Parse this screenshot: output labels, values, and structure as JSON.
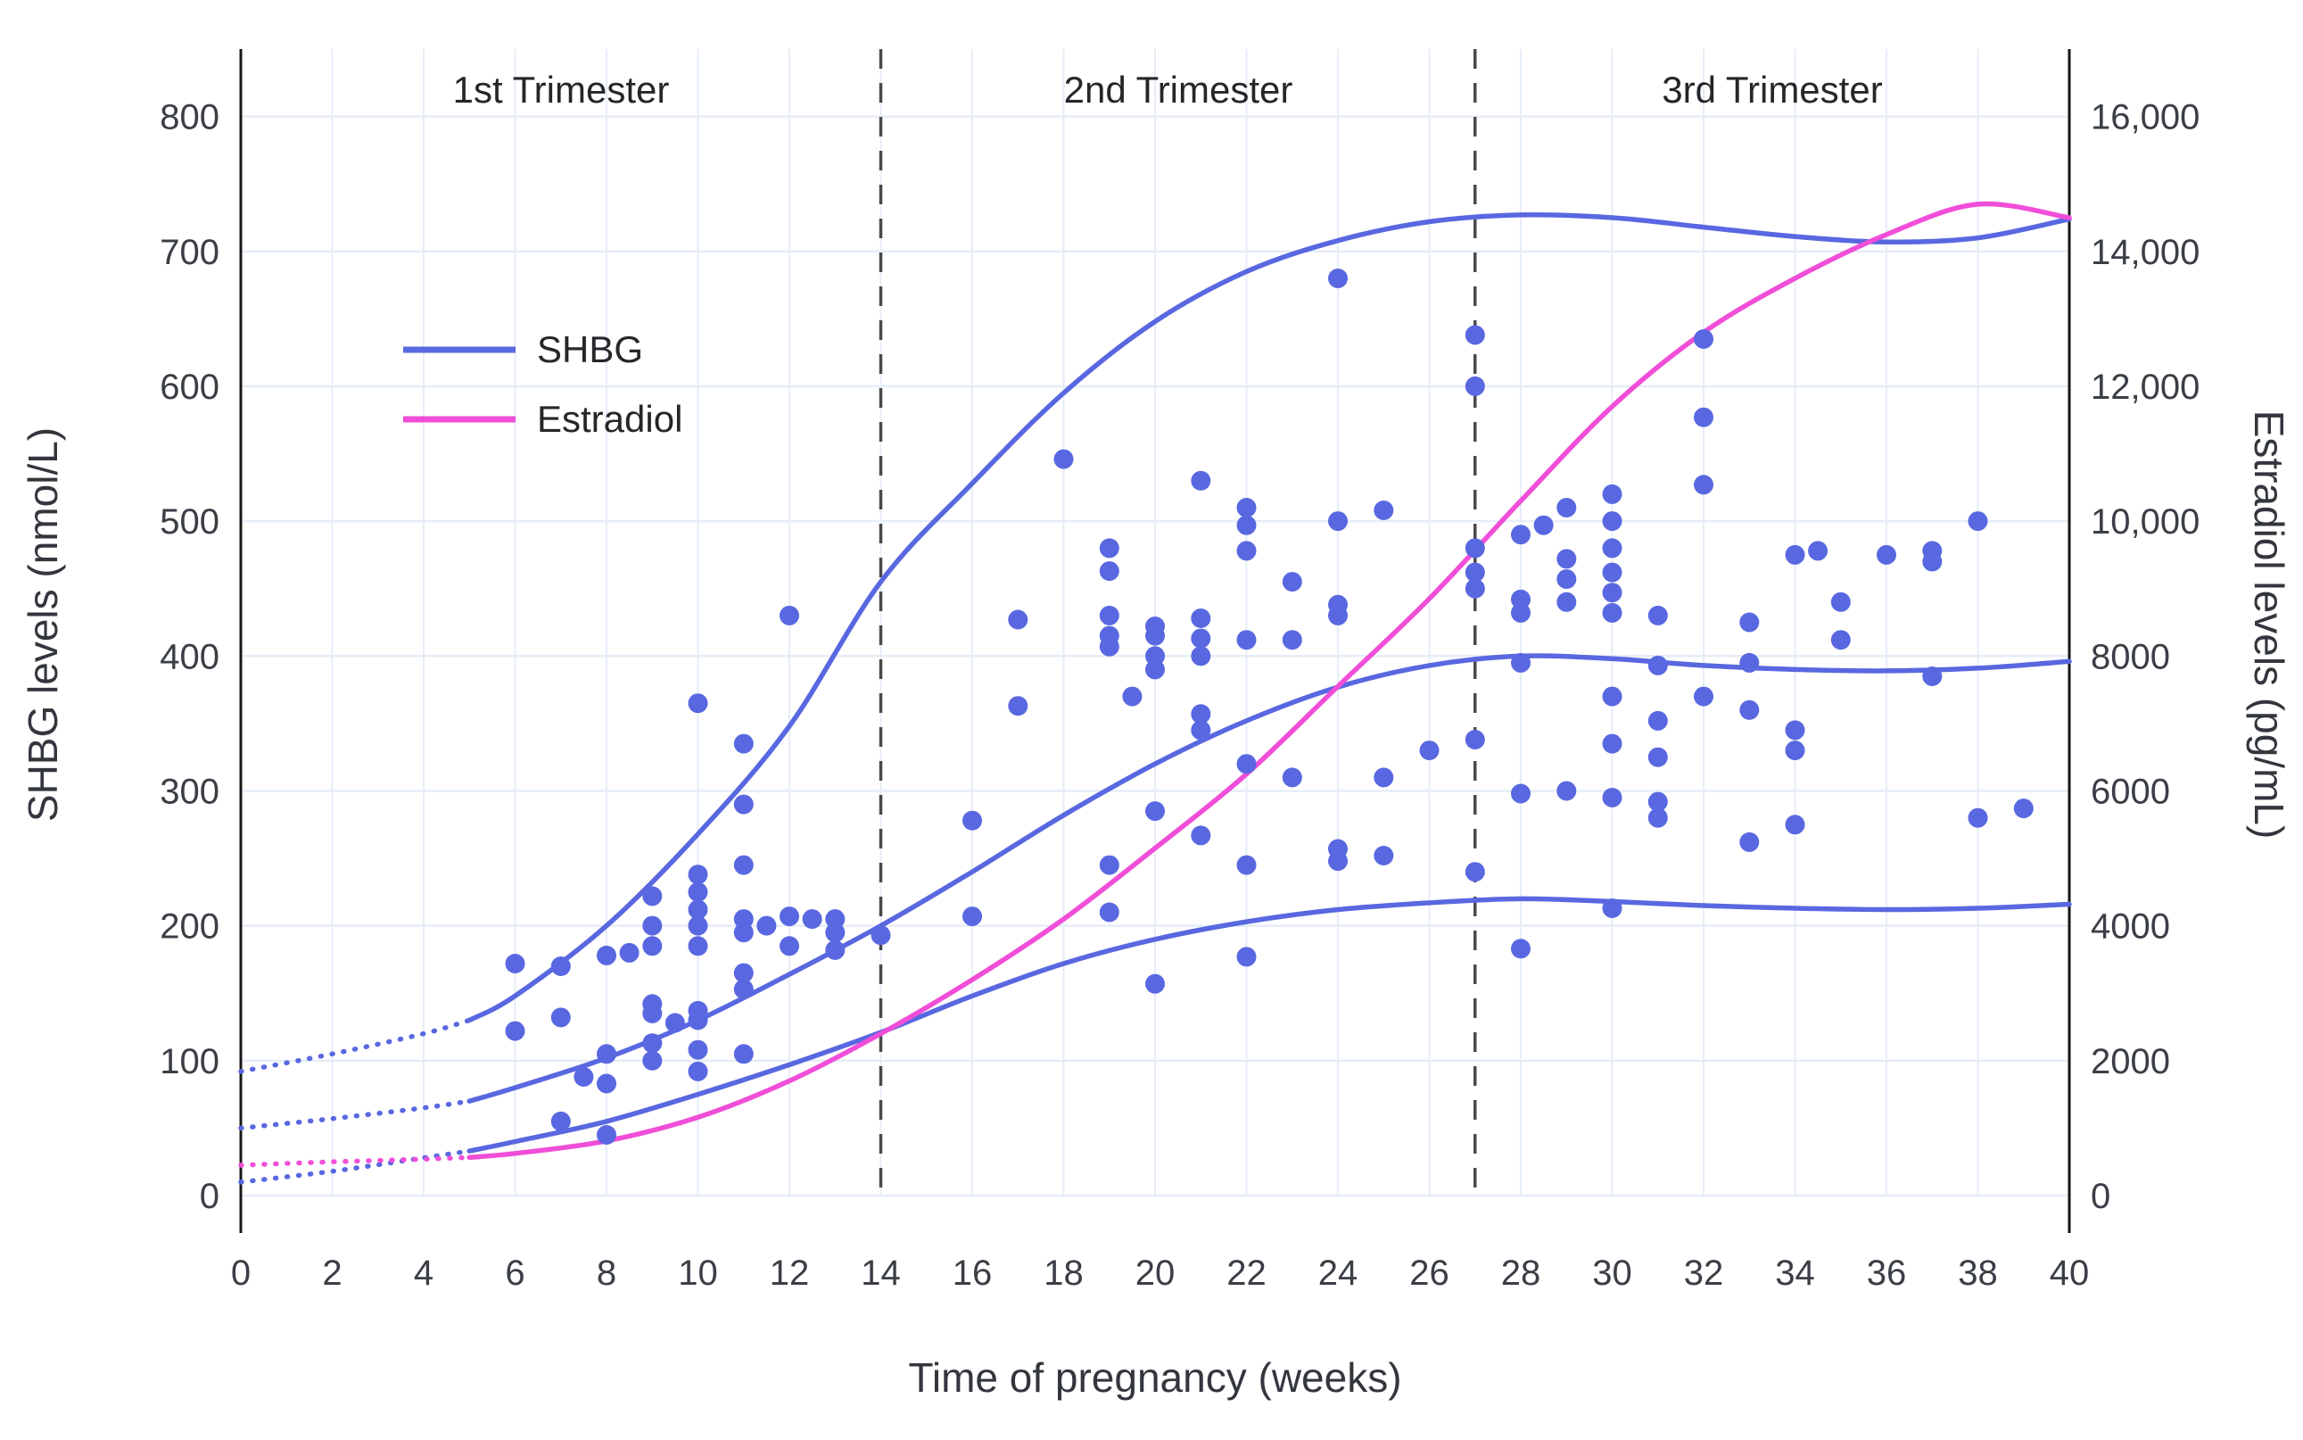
{
  "chart_data": {
    "type": "line",
    "title": "",
    "x_label": "Time of pregnancy (weeks)",
    "y_left_label": "SHBG levels (nmol/L)",
    "y_right_label": "Estradiol levels (pg/mL)",
    "x_range": [
      0,
      40
    ],
    "y_left_range": [
      0,
      850
    ],
    "y_right_range": [
      0,
      17000
    ],
    "grid": true,
    "x_ticks": [
      [
        0,
        "0"
      ],
      [
        2,
        "2"
      ],
      [
        4,
        "4"
      ],
      [
        6,
        "6"
      ],
      [
        8,
        "8"
      ],
      [
        10,
        "10"
      ],
      [
        12,
        "12"
      ],
      [
        14,
        "14"
      ],
      [
        16,
        "16"
      ],
      [
        18,
        "18"
      ],
      [
        20,
        "20"
      ],
      [
        22,
        "22"
      ],
      [
        24,
        "24"
      ],
      [
        26,
        "26"
      ],
      [
        28,
        "28"
      ],
      [
        30,
        "30"
      ],
      [
        32,
        "32"
      ],
      [
        34,
        "34"
      ],
      [
        36,
        "36"
      ],
      [
        38,
        "38"
      ],
      [
        40,
        "40"
      ]
    ],
    "y_left_ticks": [
      [
        0,
        "0"
      ],
      [
        100,
        "100"
      ],
      [
        200,
        "200"
      ],
      [
        300,
        "300"
      ],
      [
        400,
        "400"
      ],
      [
        500,
        "500"
      ],
      [
        600,
        "600"
      ],
      [
        700,
        "700"
      ],
      [
        800,
        "800"
      ]
    ],
    "y_right_ticks": [
      [
        0,
        "0"
      ],
      [
        2000,
        "2000"
      ],
      [
        4000,
        "4000"
      ],
      [
        6000,
        "6000"
      ],
      [
        8000,
        "8000"
      ],
      [
        10000,
        "10,000"
      ],
      [
        12000,
        "12,000"
      ],
      [
        14000,
        "14,000"
      ],
      [
        16000,
        "16,000"
      ]
    ],
    "trimesters": [
      {
        "label": "1st Trimester",
        "start_week": 0,
        "end_week": 14
      },
      {
        "label": "2nd Trimester",
        "start_week": 14,
        "end_week": 27
      },
      {
        "label": "3rd Trimester",
        "start_week": 27,
        "end_week": 40
      }
    ],
    "legend": {
      "position": "upper-left-inside",
      "entries": [
        {
          "label": "SHBG",
          "color": "#5968e0"
        },
        {
          "label": "Estradiol",
          "color": "#f04ed8"
        }
      ]
    },
    "colors": {
      "shbg": "#5968e0",
      "estradiol": "#f04ed8",
      "grid": "#e6edf7",
      "divider": "#4a4a4a",
      "axis": "#161616",
      "tick_text": "#3a3e45"
    },
    "series": [
      {
        "name": "SHBG-upper",
        "axis": "left",
        "color": "#5968e0",
        "dotted_until_week": 5,
        "points": [
          [
            0,
            92
          ],
          [
            2,
            105
          ],
          [
            4,
            120
          ],
          [
            5,
            130
          ],
          [
            6,
            148
          ],
          [
            8,
            200
          ],
          [
            10,
            268
          ],
          [
            12,
            348
          ],
          [
            14,
            455
          ],
          [
            16,
            528
          ],
          [
            18,
            595
          ],
          [
            20,
            648
          ],
          [
            22,
            685
          ],
          [
            24,
            708
          ],
          [
            26,
            722
          ],
          [
            28,
            727
          ],
          [
            30,
            725
          ],
          [
            32,
            718
          ],
          [
            34,
            711
          ],
          [
            36,
            707
          ],
          [
            38,
            710
          ],
          [
            40,
            724
          ]
        ]
      },
      {
        "name": "SHBG-mean",
        "axis": "left",
        "color": "#5968e0",
        "dotted_until_week": 5,
        "points": [
          [
            0,
            50
          ],
          [
            2,
            57
          ],
          [
            4,
            65
          ],
          [
            5,
            70
          ],
          [
            6,
            80
          ],
          [
            8,
            102
          ],
          [
            10,
            130
          ],
          [
            12,
            164
          ],
          [
            14,
            200
          ],
          [
            16,
            240
          ],
          [
            18,
            282
          ],
          [
            20,
            320
          ],
          [
            22,
            352
          ],
          [
            24,
            377
          ],
          [
            26,
            393
          ],
          [
            28,
            400
          ],
          [
            30,
            398
          ],
          [
            32,
            393
          ],
          [
            34,
            390
          ],
          [
            36,
            389
          ],
          [
            38,
            391
          ],
          [
            40,
            396
          ]
        ]
      },
      {
        "name": "SHBG-lower",
        "axis": "left",
        "color": "#5968e0",
        "dotted_until_week": 5,
        "points": [
          [
            0,
            10
          ],
          [
            2,
            18
          ],
          [
            4,
            28
          ],
          [
            5,
            33
          ],
          [
            6,
            40
          ],
          [
            8,
            55
          ],
          [
            10,
            75
          ],
          [
            12,
            97
          ],
          [
            14,
            121
          ],
          [
            16,
            148
          ],
          [
            18,
            172
          ],
          [
            20,
            190
          ],
          [
            22,
            203
          ],
          [
            24,
            212
          ],
          [
            26,
            217
          ],
          [
            28,
            220
          ],
          [
            30,
            218
          ],
          [
            32,
            215
          ],
          [
            34,
            213
          ],
          [
            36,
            212
          ],
          [
            38,
            213
          ],
          [
            40,
            216
          ]
        ]
      },
      {
        "name": "Estradiol",
        "axis": "right",
        "color": "#f04ed8",
        "dotted_until_week": 5,
        "points": [
          [
            0,
            450
          ],
          [
            2,
            500
          ],
          [
            4,
            540
          ],
          [
            5,
            565
          ],
          [
            6,
            625
          ],
          [
            8,
            810
          ],
          [
            10,
            1160
          ],
          [
            12,
            1700
          ],
          [
            14,
            2400
          ],
          [
            16,
            3200
          ],
          [
            18,
            4100
          ],
          [
            20,
            5150
          ],
          [
            22,
            6250
          ],
          [
            24,
            7550
          ],
          [
            26,
            8850
          ],
          [
            28,
            10300
          ],
          [
            30,
            11700
          ],
          [
            32,
            12800
          ],
          [
            34,
            13600
          ],
          [
            36,
            14250
          ],
          [
            38,
            14700
          ],
          [
            40,
            14500
          ]
        ]
      }
    ],
    "scatter": {
      "name": "SHBG-observations",
      "axis": "left",
      "color": "#5968e0",
      "points": [
        [
          6,
          122
        ],
        [
          6,
          172
        ],
        [
          7,
          55
        ],
        [
          7,
          132
        ],
        [
          7,
          170
        ],
        [
          7.5,
          88
        ],
        [
          8,
          45
        ],
        [
          8,
          83
        ],
        [
          8,
          105
        ],
        [
          8,
          178
        ],
        [
          8.5,
          180
        ],
        [
          9,
          100
        ],
        [
          9,
          113
        ],
        [
          9,
          135
        ],
        [
          9,
          142
        ],
        [
          9,
          185
        ],
        [
          9,
          200
        ],
        [
          9,
          222
        ],
        [
          9.5,
          128
        ],
        [
          10,
          92
        ],
        [
          10,
          108
        ],
        [
          10,
          130
        ],
        [
          10,
          137
        ],
        [
          10,
          185
        ],
        [
          10,
          200
        ],
        [
          10,
          212
        ],
        [
          10,
          225
        ],
        [
          10,
          238
        ],
        [
          10,
          365
        ],
        [
          11,
          105
        ],
        [
          11,
          153
        ],
        [
          11,
          165
        ],
        [
          11,
          195
        ],
        [
          11,
          205
        ],
        [
          11,
          245
        ],
        [
          11,
          290
        ],
        [
          11,
          335
        ],
        [
          11.5,
          200
        ],
        [
          12,
          185
        ],
        [
          12,
          207
        ],
        [
          12,
          430
        ],
        [
          12.5,
          205
        ],
        [
          13,
          182
        ],
        [
          13,
          195
        ],
        [
          13,
          205
        ],
        [
          14,
          193
        ],
        [
          16,
          207
        ],
        [
          16,
          278
        ],
        [
          17,
          363
        ],
        [
          17,
          427
        ],
        [
          18,
          546
        ],
        [
          19,
          210
        ],
        [
          19,
          245
        ],
        [
          19,
          407
        ],
        [
          19,
          415
        ],
        [
          19,
          430
        ],
        [
          19,
          463
        ],
        [
          19,
          480
        ],
        [
          19.5,
          370
        ],
        [
          20,
          157
        ],
        [
          20,
          285
        ],
        [
          20,
          390
        ],
        [
          20,
          400
        ],
        [
          20,
          415
        ],
        [
          20,
          422
        ],
        [
          21,
          267
        ],
        [
          21,
          345
        ],
        [
          21,
          357
        ],
        [
          21,
          400
        ],
        [
          21,
          413
        ],
        [
          21,
          428
        ],
        [
          21,
          530
        ],
        [
          22,
          177
        ],
        [
          22,
          245
        ],
        [
          22,
          320
        ],
        [
          22,
          412
        ],
        [
          22,
          478
        ],
        [
          22,
          497
        ],
        [
          22,
          510
        ],
        [
          23,
          310
        ],
        [
          23,
          412
        ],
        [
          23,
          455
        ],
        [
          24,
          248
        ],
        [
          24,
          257
        ],
        [
          24,
          430
        ],
        [
          24,
          438
        ],
        [
          24,
          500
        ],
        [
          24,
          680
        ],
        [
          25,
          252
        ],
        [
          25,
          310
        ],
        [
          25,
          508
        ],
        [
          26,
          330
        ],
        [
          27,
          240
        ],
        [
          27,
          338
        ],
        [
          27,
          450
        ],
        [
          27,
          462
        ],
        [
          27,
          480
        ],
        [
          27,
          600
        ],
        [
          27,
          638
        ],
        [
          28,
          183
        ],
        [
          28,
          298
        ],
        [
          28,
          395
        ],
        [
          28,
          432
        ],
        [
          28,
          442
        ],
        [
          28,
          490
        ],
        [
          28.5,
          497
        ],
        [
          29,
          300
        ],
        [
          29,
          440
        ],
        [
          29,
          457
        ],
        [
          29,
          472
        ],
        [
          29,
          510
        ],
        [
          30,
          213
        ],
        [
          30,
          295
        ],
        [
          30,
          335
        ],
        [
          30,
          370
        ],
        [
          30,
          432
        ],
        [
          30,
          447
        ],
        [
          30,
          462
        ],
        [
          30,
          480
        ],
        [
          30,
          500
        ],
        [
          30,
          520
        ],
        [
          31,
          280
        ],
        [
          31,
          292
        ],
        [
          31,
          325
        ],
        [
          31,
          352
        ],
        [
          31,
          393
        ],
        [
          31,
          430
        ],
        [
          32,
          370
        ],
        [
          32,
          527
        ],
        [
          32,
          577
        ],
        [
          32,
          635
        ],
        [
          33,
          262
        ],
        [
          33,
          360
        ],
        [
          33,
          395
        ],
        [
          33,
          425
        ],
        [
          34,
          275
        ],
        [
          34,
          330
        ],
        [
          34,
          345
        ],
        [
          34,
          475
        ],
        [
          34.5,
          478
        ],
        [
          35,
          412
        ],
        [
          35,
          440
        ],
        [
          36,
          475
        ],
        [
          37,
          385
        ],
        [
          37,
          470
        ],
        [
          37,
          478
        ],
        [
          38,
          280
        ],
        [
          38,
          500
        ],
        [
          39,
          287
        ]
      ]
    }
  }
}
